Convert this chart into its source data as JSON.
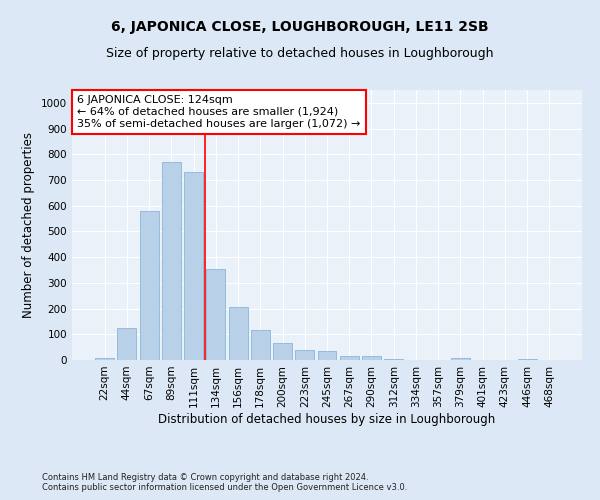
{
  "title": "6, JAPONICA CLOSE, LOUGHBOROUGH, LE11 2SB",
  "subtitle": "Size of property relative to detached houses in Loughborough",
  "xlabel": "Distribution of detached houses by size in Loughborough",
  "ylabel": "Number of detached properties",
  "footer1": "Contains HM Land Registry data © Crown copyright and database right 2024.",
  "footer2": "Contains public sector information licensed under the Open Government Licence v3.0.",
  "categories": [
    "22sqm",
    "44sqm",
    "67sqm",
    "89sqm",
    "111sqm",
    "134sqm",
    "156sqm",
    "178sqm",
    "200sqm",
    "223sqm",
    "245sqm",
    "267sqm",
    "290sqm",
    "312sqm",
    "334sqm",
    "357sqm",
    "379sqm",
    "401sqm",
    "423sqm",
    "446sqm",
    "468sqm"
  ],
  "values": [
    8,
    125,
    578,
    770,
    730,
    355,
    205,
    118,
    65,
    37,
    35,
    14,
    14,
    5,
    0,
    0,
    7,
    0,
    0,
    3,
    0
  ],
  "bar_color": "#b8d0e8",
  "bar_edge_color": "#7aadd4",
  "vline_position": 4.5,
  "vline_color": "red",
  "annotation_line1": "6 JAPONICA CLOSE: 124sqm",
  "annotation_line2": "← 64% of detached houses are smaller (1,924)",
  "annotation_line3": "35% of semi-detached houses are larger (1,072) →",
  "annotation_box_color": "white",
  "annotation_box_edgecolor": "red",
  "ylim": [
    0,
    1050
  ],
  "yticks": [
    0,
    100,
    200,
    300,
    400,
    500,
    600,
    700,
    800,
    900,
    1000
  ],
  "bg_color": "#dce8f5",
  "plot_bg_color": "#eaf1f8",
  "grid_color": "white",
  "title_fontsize": 10,
  "subtitle_fontsize": 9,
  "axis_label_fontsize": 8.5,
  "tick_fontsize": 7.5,
  "annotation_fontsize": 8,
  "footer_fontsize": 6,
  "ylabel_fontsize": 8.5
}
